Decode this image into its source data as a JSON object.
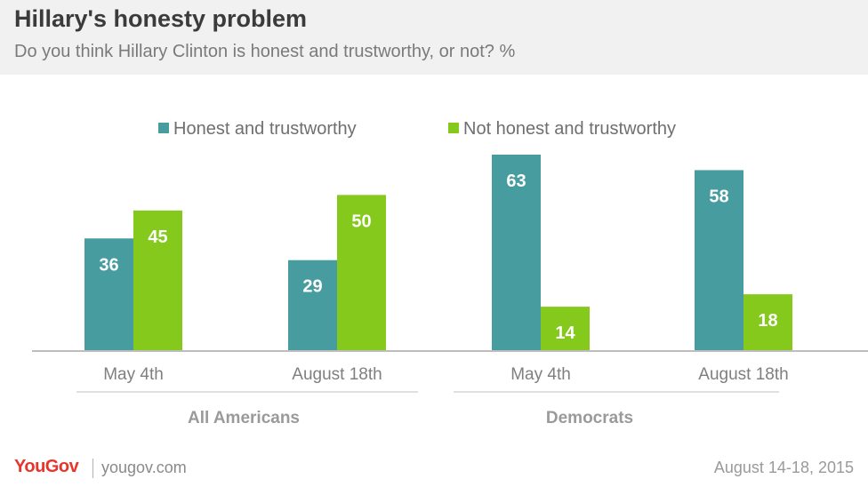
{
  "header": {
    "title": "Hillary's honesty problem",
    "subtitle": "Do you think Hillary Clinton is honest and trustworthy, or not? %"
  },
  "footer": {
    "logo": "YouGov",
    "site": "yougov.com",
    "date": "August 14-18, 2015"
  },
  "colors": {
    "honest": "#479c9f",
    "not_honest": "#84c91b",
    "axis": "#bdbdbd",
    "tick_text": "#7f7f7f",
    "group_text": "#9a9a9a",
    "value_text": "#ffffff"
  },
  "chart_data": {
    "type": "bar",
    "categories": [
      "May 4th",
      "August 18th",
      "May 4th",
      "August 18th"
    ],
    "groups": [
      {
        "label": "All Americans",
        "categories": [
          0,
          1
        ]
      },
      {
        "label": "Democrats",
        "categories": [
          2,
          3
        ]
      }
    ],
    "series": [
      {
        "name": "Honest and trustworthy",
        "values": [
          36,
          29,
          63,
          58
        ]
      },
      {
        "name": "Not honest and trustworthy",
        "values": [
          45,
          50,
          14,
          18
        ]
      }
    ],
    "ylim": [
      0,
      63
    ],
    "legend": "top-center",
    "grid": false,
    "data_labels": true
  }
}
